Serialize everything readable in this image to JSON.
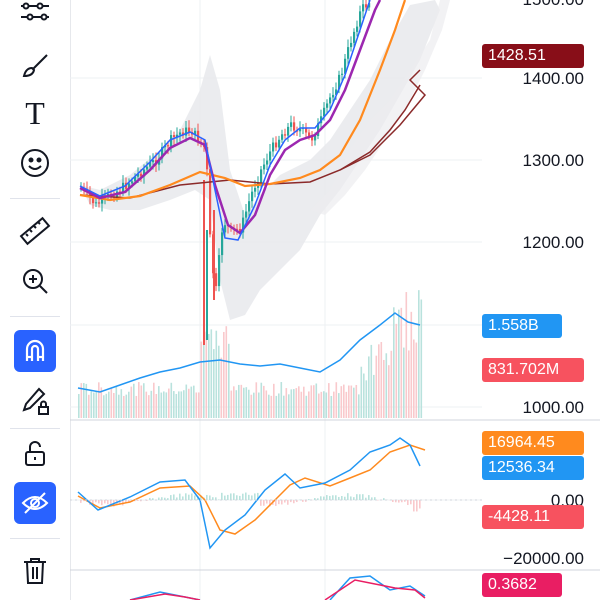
{
  "toolbar": {
    "tools": [
      {
        "name": "trend-lines-icon"
      },
      {
        "name": "brush-icon"
      },
      {
        "name": "text-icon",
        "glyph": "T"
      },
      {
        "name": "emoji-icon"
      },
      {
        "name": "ruler-icon"
      },
      {
        "name": "zoom-in-icon"
      },
      {
        "name": "magnet-icon",
        "active": true
      },
      {
        "name": "lock-drawing-icon"
      },
      {
        "name": "unlock-icon"
      },
      {
        "name": "hide-drawings-icon",
        "active": true
      },
      {
        "name": "trash-icon"
      }
    ]
  },
  "price_axis": {
    "labels": [
      "1500.00",
      "1400.00",
      "1300.00",
      "1200.00",
      "1000.00"
    ]
  },
  "badges": {
    "last_price": {
      "text": "1428.51",
      "color": "#880e18"
    },
    "volume_ma": {
      "text": "1.558B",
      "color": "#2196f3"
    },
    "volume": {
      "text": "831.702M",
      "color": "#f7525f"
    }
  },
  "macd": {
    "axis_labels": [
      "0.00",
      "−20000.00"
    ],
    "badges": [
      {
        "text": "16964.45",
        "color": "#ff8a1e"
      },
      {
        "text": "12536.34",
        "color": "#2196f3"
      },
      {
        "text": "-4428.11",
        "color": "#f7525f"
      }
    ]
  },
  "bottom_panel": {
    "badge": {
      "text": "0.3682",
      "color": "#e91e63"
    }
  },
  "colors": {
    "accent": "#2962ff",
    "up": "#26a69a",
    "down": "#ef5350",
    "ma_purple": "#9c27b0",
    "ma_orange": "#ff8a1e",
    "ma_blue": "#2962ff",
    "ma_brown": "#8b2a2a"
  }
}
